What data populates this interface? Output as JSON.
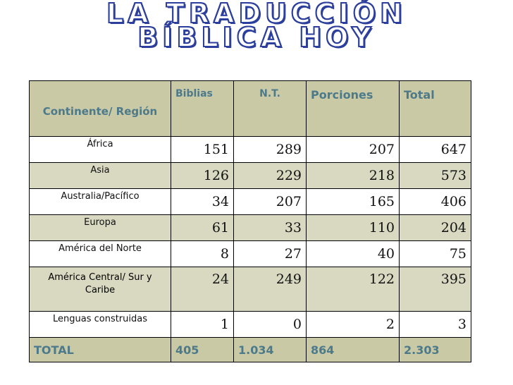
{
  "title": {
    "line1": "LA TRADUCCIÓN",
    "line2": "BÍBLICA HOY"
  },
  "table": {
    "header": {
      "region": "Continente/ Región",
      "bibles": "Biblias",
      "nt": "N.T.",
      "portions": "Porciones",
      "total": "Total"
    },
    "rows": [
      {
        "region": "África",
        "bibles": "151",
        "nt": "289",
        "portions": "207",
        "total": "647"
      },
      {
        "region": "Asia",
        "bibles": "126",
        "nt": "229",
        "portions": "218",
        "total": "573"
      },
      {
        "region": "Australia/Pacífico",
        "bibles": "34",
        "nt": "207",
        "portions": "165",
        "total": "406"
      },
      {
        "region": "Europa",
        "bibles": "61",
        "nt": "33",
        "portions": "110",
        "total": "204"
      },
      {
        "region": "América del Norte",
        "bibles": "8",
        "nt": "27",
        "portions": "40",
        "total": "75"
      },
      {
        "region": "América Central/ Sur y Caribe",
        "bibles": "24",
        "nt": "249",
        "portions": "122",
        "total": "395"
      },
      {
        "region": "Lenguas construidas",
        "bibles": "1",
        "nt": "0",
        "portions": "2",
        "total": "3"
      }
    ],
    "totals": {
      "label": "TOTAL",
      "bibles": "405",
      "nt": "1.034",
      "portions": "864",
      "total": "2.303"
    }
  }
}
